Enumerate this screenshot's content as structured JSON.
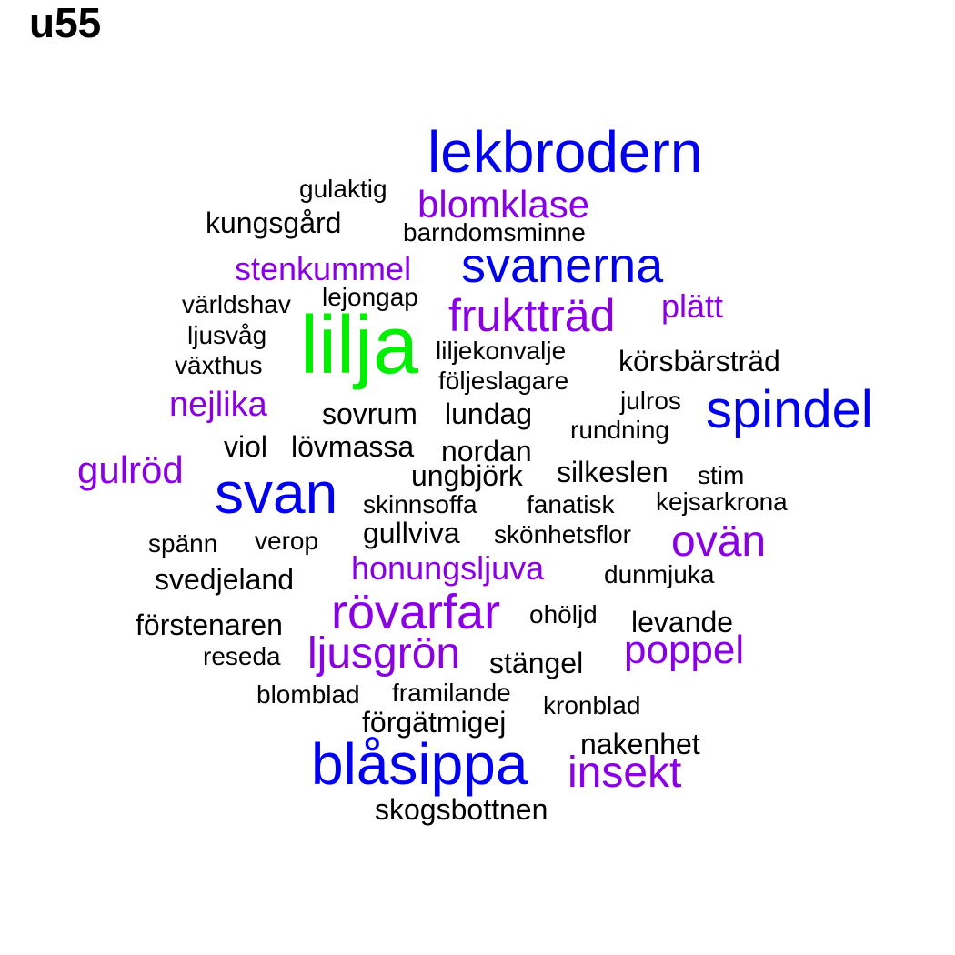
{
  "title": "u55",
  "colors": {
    "black": "#000000",
    "purple": "#8a00e6",
    "blue": "#0000ee",
    "green": "#00ee00"
  },
  "words": [
    {
      "text": "lilja",
      "color": "green"
    },
    {
      "text": "lekbrodern",
      "color": "blue"
    },
    {
      "text": "blåsippa",
      "color": "blue"
    },
    {
      "text": "svan",
      "color": "blue"
    },
    {
      "text": "spindel",
      "color": "blue"
    },
    {
      "text": "svanerna",
      "color": "blue"
    },
    {
      "text": "rövarfar",
      "color": "purple"
    },
    {
      "text": "fruktträd",
      "color": "purple"
    },
    {
      "text": "ljusgrön",
      "color": "purple"
    },
    {
      "text": "insekt",
      "color": "purple"
    },
    {
      "text": "ovän",
      "color": "purple"
    },
    {
      "text": "poppel",
      "color": "purple"
    },
    {
      "text": "blomklase",
      "color": "purple"
    },
    {
      "text": "gulröd",
      "color": "purple"
    },
    {
      "text": "nejlika",
      "color": "purple"
    },
    {
      "text": "stenkummel",
      "color": "purple"
    },
    {
      "text": "honungsljuva",
      "color": "purple"
    },
    {
      "text": "plätt",
      "color": "purple"
    },
    {
      "text": "kungsgård",
      "color": "black"
    },
    {
      "text": "gulaktig",
      "color": "black"
    },
    {
      "text": "barndomsminne",
      "color": "black"
    },
    {
      "text": "världshav",
      "color": "black"
    },
    {
      "text": "lejongap",
      "color": "black"
    },
    {
      "text": "ljusvåg",
      "color": "black"
    },
    {
      "text": "växthus",
      "color": "black"
    },
    {
      "text": "liljekonvalje",
      "color": "black"
    },
    {
      "text": "körsbärsträd",
      "color": "black"
    },
    {
      "text": "följeslagare",
      "color": "black"
    },
    {
      "text": "julros",
      "color": "black"
    },
    {
      "text": "sovrum",
      "color": "black"
    },
    {
      "text": "lundag",
      "color": "black"
    },
    {
      "text": "rundning",
      "color": "black"
    },
    {
      "text": "viol",
      "color": "black"
    },
    {
      "text": "lövmassa",
      "color": "black"
    },
    {
      "text": "nordan",
      "color": "black"
    },
    {
      "text": "ungbjörk",
      "color": "black"
    },
    {
      "text": "silkeslen",
      "color": "black"
    },
    {
      "text": "stim",
      "color": "black"
    },
    {
      "text": "skinnsoffa",
      "color": "black"
    },
    {
      "text": "fanatisk",
      "color": "black"
    },
    {
      "text": "kejsarkrona",
      "color": "black"
    },
    {
      "text": "gullviva",
      "color": "black"
    },
    {
      "text": "skönhetsflor",
      "color": "black"
    },
    {
      "text": "spänn",
      "color": "black"
    },
    {
      "text": "verop",
      "color": "black"
    },
    {
      "text": "svedjeland",
      "color": "black"
    },
    {
      "text": "dunmjuka",
      "color": "black"
    },
    {
      "text": "förstenaren",
      "color": "black"
    },
    {
      "text": "ohöljd",
      "color": "black"
    },
    {
      "text": "levande",
      "color": "black"
    },
    {
      "text": "reseda",
      "color": "black"
    },
    {
      "text": "stängel",
      "color": "black"
    },
    {
      "text": "blomblad",
      "color": "black"
    },
    {
      "text": "framilande",
      "color": "black"
    },
    {
      "text": "kronblad",
      "color": "black"
    },
    {
      "text": "förgätmigej",
      "color": "black"
    },
    {
      "text": "nakenhet",
      "color": "black"
    },
    {
      "text": "skogsbottnen",
      "color": "black"
    }
  ]
}
